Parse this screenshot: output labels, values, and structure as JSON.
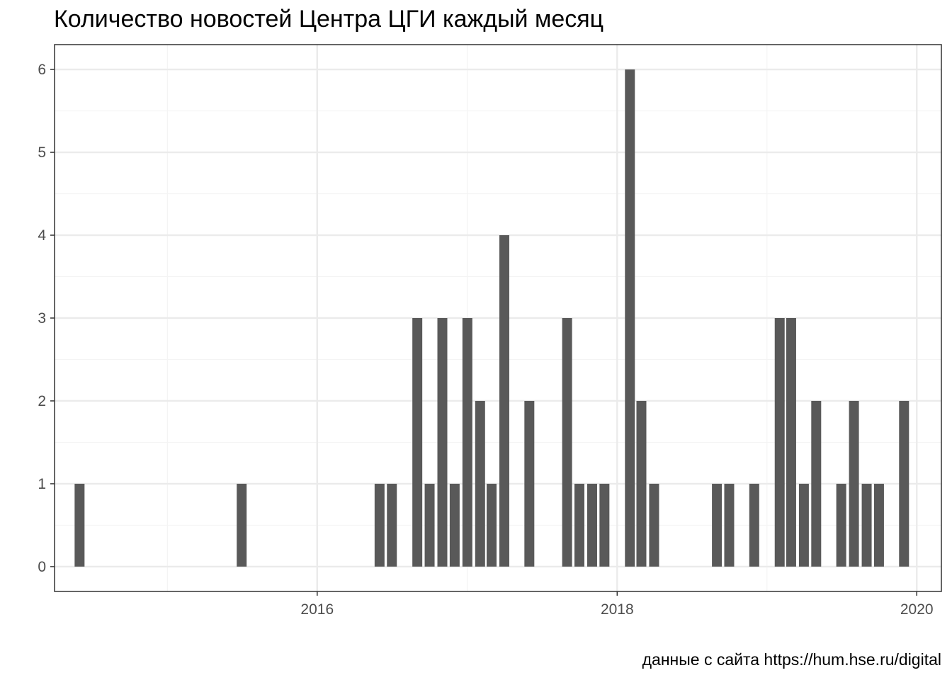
{
  "title": "Количество новостей Центра ЦГИ каждый месяц",
  "caption": "данные с сайта https://hum.hse.ru/digital",
  "colors": {
    "bar": "#595959",
    "grid_major": "#ebebeb",
    "grid_minor": "#f4f4f4",
    "panel_border": "#333333",
    "tick_text": "#4d4d4d"
  },
  "chart_data": {
    "type": "bar",
    "title": "Количество новостей Центра ЦГИ каждый месяц",
    "xlabel": "",
    "ylabel": "",
    "x_axis": "date",
    "xlim": [
      "2014-04-01",
      "2020-03-01"
    ],
    "ylim": [
      -0.3,
      6.3
    ],
    "x_ticks": [
      "2016",
      "2018",
      "2020"
    ],
    "y_ticks": [
      "0",
      "1",
      "2",
      "3",
      "4",
      "5",
      "6"
    ],
    "grid": true,
    "legend": "none",
    "series": [
      {
        "values": [
          {
            "x": "2014-06",
            "y": 1
          },
          {
            "x": "2015-07",
            "y": 1
          },
          {
            "x": "2016-06",
            "y": 1
          },
          {
            "x": "2016-07",
            "y": 1
          },
          {
            "x": "2016-09",
            "y": 3
          },
          {
            "x": "2016-10",
            "y": 1
          },
          {
            "x": "2016-11",
            "y": 3
          },
          {
            "x": "2016-12",
            "y": 1
          },
          {
            "x": "2017-01",
            "y": 3
          },
          {
            "x": "2017-02",
            "y": 2
          },
          {
            "x": "2017-03",
            "y": 1
          },
          {
            "x": "2017-04",
            "y": 4
          },
          {
            "x": "2017-06",
            "y": 2
          },
          {
            "x": "2017-09",
            "y": 3
          },
          {
            "x": "2017-10",
            "y": 1
          },
          {
            "x": "2017-11",
            "y": 1
          },
          {
            "x": "2017-12",
            "y": 1
          },
          {
            "x": "2018-02",
            "y": 6
          },
          {
            "x": "2018-03",
            "y": 2
          },
          {
            "x": "2018-04",
            "y": 1
          },
          {
            "x": "2018-09",
            "y": 1
          },
          {
            "x": "2018-10",
            "y": 1
          },
          {
            "x": "2018-12",
            "y": 1
          },
          {
            "x": "2019-02",
            "y": 3
          },
          {
            "x": "2019-03",
            "y": 3
          },
          {
            "x": "2019-04",
            "y": 1
          },
          {
            "x": "2019-05",
            "y": 2
          },
          {
            "x": "2019-07",
            "y": 1
          },
          {
            "x": "2019-08",
            "y": 2
          },
          {
            "x": "2019-09",
            "y": 1
          },
          {
            "x": "2019-10",
            "y": 1
          },
          {
            "x": "2019-12",
            "y": 2
          }
        ]
      }
    ]
  }
}
